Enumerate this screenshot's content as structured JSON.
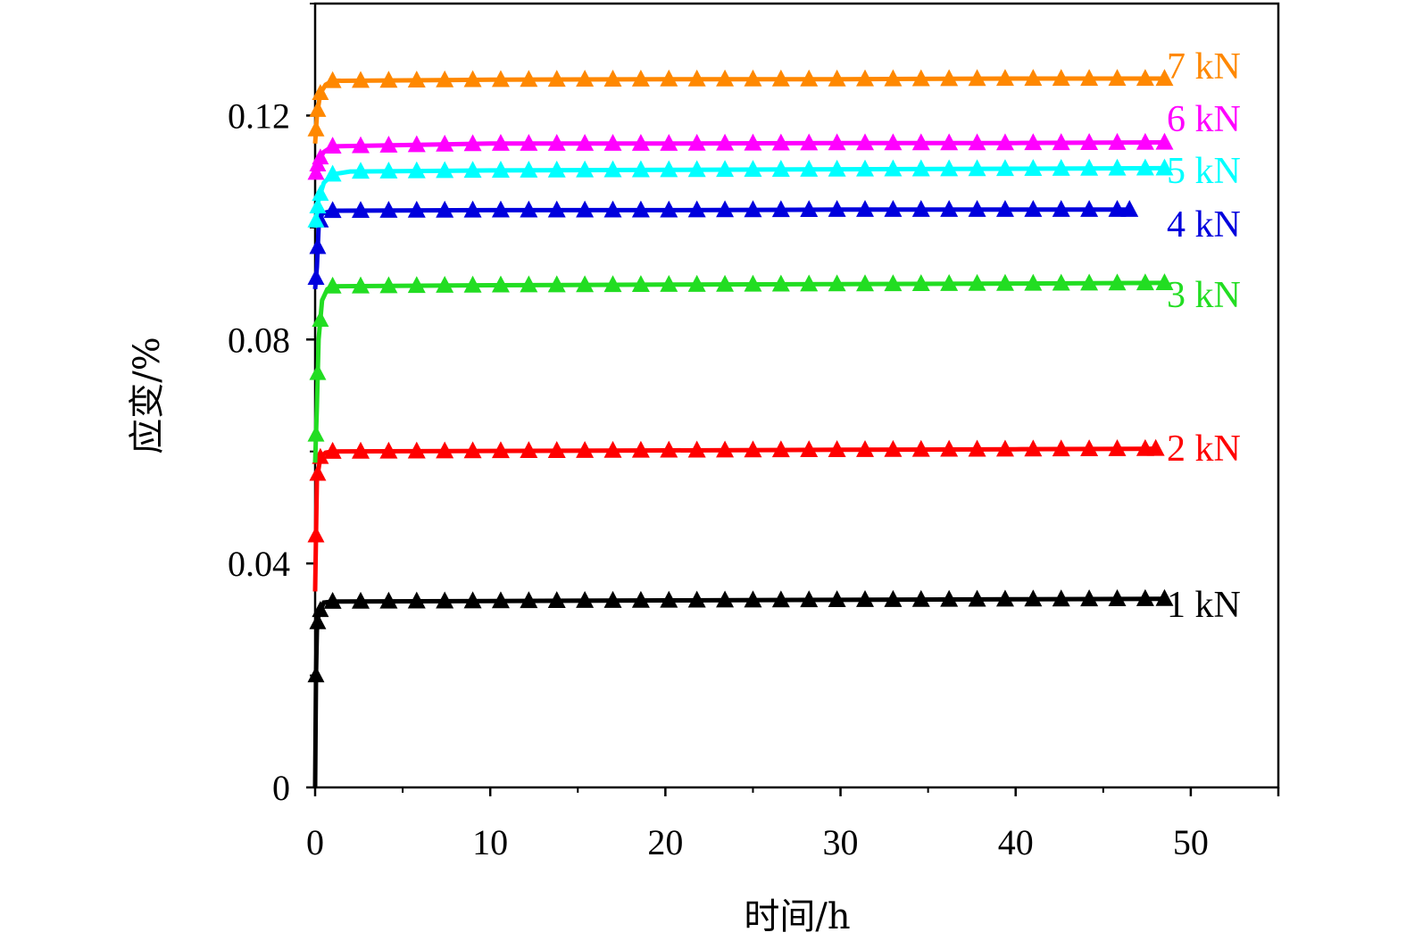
{
  "chart_data": {
    "type": "line",
    "xlabel": "时间/h",
    "ylabel": "应变/%",
    "xlim": [
      0,
      55
    ],
    "ylim": [
      0,
      0.14
    ],
    "x_ticks": [
      0,
      10,
      20,
      30,
      40,
      50
    ],
    "x_tick_labels": [
      "0",
      "10",
      "20",
      "30",
      "40",
      "50"
    ],
    "y_ticks": [
      0,
      0.04,
      0.08,
      0.12
    ],
    "y_tick_labels": [
      "0",
      "0.04",
      "0.08",
      "0.12"
    ],
    "grid": false,
    "legend": "series labels at right end of each line",
    "marker": "triangle",
    "series": [
      {
        "name": "1 kN",
        "color": "#000000",
        "label": "1 kN",
        "points": [
          [
            0,
            0
          ],
          [
            0.05,
            0.02
          ],
          [
            0.1,
            0.028
          ],
          [
            0.2,
            0.031
          ],
          [
            0.5,
            0.033
          ],
          [
            1,
            0.0332
          ],
          [
            10,
            0.0333
          ],
          [
            20,
            0.0334
          ],
          [
            30,
            0.0335
          ],
          [
            40,
            0.0336
          ],
          [
            48.5,
            0.0337
          ]
        ]
      },
      {
        "name": "2 kN",
        "color": "#ff0000",
        "label": "2 kN",
        "points": [
          [
            0,
            0.035
          ],
          [
            0.1,
            0.055
          ],
          [
            0.3,
            0.059
          ],
          [
            0.6,
            0.0598
          ],
          [
            1,
            0.06
          ],
          [
            10,
            0.0601
          ],
          [
            20,
            0.0602
          ],
          [
            30,
            0.0603
          ],
          [
            40,
            0.0604
          ],
          [
            48,
            0.0605
          ]
        ]
      },
      {
        "name": "3 kN",
        "color": "#22dd22",
        "label": "3 kN",
        "points": [
          [
            0,
            0.058
          ],
          [
            0.1,
            0.068
          ],
          [
            0.2,
            0.08
          ],
          [
            0.4,
            0.087
          ],
          [
            0.7,
            0.089
          ],
          [
            1,
            0.0895
          ],
          [
            10,
            0.0897
          ],
          [
            20,
            0.0898
          ],
          [
            30,
            0.0899
          ],
          [
            40,
            0.09
          ],
          [
            48.5,
            0.0901
          ]
        ]
      },
      {
        "name": "4 kN",
        "color": "#0000dd",
        "label": "4 kN",
        "points": [
          [
            0,
            0.089
          ],
          [
            0.1,
            0.093
          ],
          [
            0.2,
            0.1
          ],
          [
            0.4,
            0.1025
          ],
          [
            1,
            0.103
          ],
          [
            10,
            0.1031
          ],
          [
            20,
            0.1031
          ],
          [
            30,
            0.1032
          ],
          [
            40,
            0.1032
          ],
          [
            46.5,
            0.1032
          ]
        ]
      },
      {
        "name": "5 kN",
        "color": "#00ffff",
        "label": "5 kN",
        "points": [
          [
            0,
            0.1
          ],
          [
            0.2,
            0.105
          ],
          [
            0.5,
            0.108
          ],
          [
            1,
            0.1095
          ],
          [
            2,
            0.11
          ],
          [
            10,
            0.1102
          ],
          [
            20,
            0.1103
          ],
          [
            30,
            0.1104
          ],
          [
            40,
            0.1105
          ],
          [
            48.5,
            0.1106
          ]
        ]
      },
      {
        "name": "6 kN",
        "color": "#ff00ff",
        "label": "6 kN",
        "points": [
          [
            0,
            0.109
          ],
          [
            0.2,
            0.112
          ],
          [
            0.5,
            0.1135
          ],
          [
            1,
            0.1145
          ],
          [
            10,
            0.115
          ],
          [
            20,
            0.115
          ],
          [
            30,
            0.1151
          ],
          [
            40,
            0.1151
          ],
          [
            48.5,
            0.1152
          ]
        ]
      },
      {
        "name": "7 kN",
        "color": "#ff8800",
        "label": "7 kN",
        "points": [
          [
            0,
            0.115
          ],
          [
            0.1,
            0.12
          ],
          [
            0.3,
            0.124
          ],
          [
            0.6,
            0.1255
          ],
          [
            1,
            0.1262
          ],
          [
            10,
            0.1264
          ],
          [
            20,
            0.1265
          ],
          [
            30,
            0.1265
          ],
          [
            40,
            0.1266
          ],
          [
            48.5,
            0.1266
          ]
        ]
      }
    ]
  }
}
